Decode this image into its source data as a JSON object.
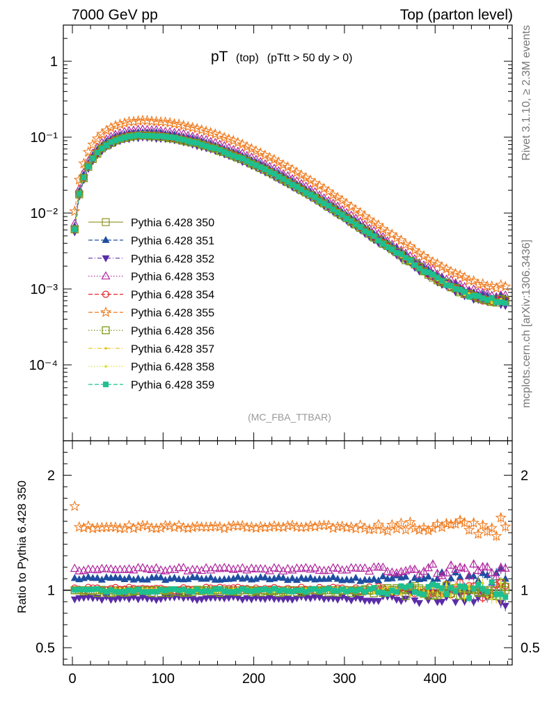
{
  "header": {
    "left": "7000 GeV pp",
    "right": "Top (parton level)"
  },
  "side_text": {
    "top": "Rivet 3.1.10, ≥ 2.3M events",
    "bottom": "mcplots.cern.ch [arXiv:1306.3436]"
  },
  "plot_title": {
    "main": "pT",
    "sub1": "(top)",
    "sub2": "(pTtt > 50 dy > 0)"
  },
  "analysis_tag": "(MC_FBA_TTBAR)",
  "chart_data": [
    {
      "type": "scatter",
      "yscale": "log",
      "xlim": [
        -10,
        485
      ],
      "ylim": [
        1e-05,
        3
      ],
      "y_ticks": [
        {
          "value": 1,
          "label": "1"
        },
        {
          "value": 0.1,
          "label": "10⁻¹"
        },
        {
          "value": 0.01,
          "label": "10⁻²"
        },
        {
          "value": 0.001,
          "label": "10⁻³"
        },
        {
          "value": 0.0001,
          "label": "10⁻⁴"
        }
      ],
      "legend_position": "left-middle",
      "reference": {
        "x": [
          2.5,
          7.5,
          12.5,
          17.5,
          22.5,
          27.5,
          32.5,
          37.5,
          42.5,
          47.5,
          52.5,
          57.5,
          62.5,
          67.5,
          72.5,
          77.5,
          82.5,
          87.5,
          92.5,
          97.5,
          102.5,
          107.5,
          112.5,
          117.5,
          122.5,
          127.5,
          132.5,
          137.5,
          142.5,
          147.5,
          152.5,
          157.5,
          162.5,
          167.5,
          172.5,
          177.5,
          182.5,
          187.5,
          192.5,
          197.5,
          202.5,
          207.5,
          212.5,
          217.5,
          222.5,
          227.5,
          232.5,
          237.5,
          242.5,
          247.5,
          252.5,
          257.5,
          262.5,
          267.5,
          272.5,
          277.5,
          282.5,
          287.5,
          292.5,
          297.5,
          302.5,
          307.5,
          312.5,
          317.5,
          322.5,
          327.5,
          332.5,
          337.5,
          342.5,
          347.5,
          352.5,
          357.5,
          362.5,
          367.5,
          372.5,
          377.5,
          382.5,
          387.5,
          392.5,
          397.5,
          402.5,
          407.5,
          412.5,
          417.5,
          422.5,
          427.5,
          432.5,
          437.5,
          442.5,
          447.5,
          452.5,
          457.5,
          462.5,
          467.5,
          472.5,
          477.5
        ],
        "y": [
          0.0061,
          0.0177,
          0.0291,
          0.0408,
          0.0519,
          0.0621,
          0.0712,
          0.0791,
          0.0859,
          0.0915,
          0.0961,
          0.0997,
          0.1024,
          0.1043,
          0.1054,
          0.1059,
          0.1058,
          0.1052,
          0.1043,
          0.1029,
          0.1013,
          0.0993,
          0.0971,
          0.0947,
          0.0921,
          0.0893,
          0.0864,
          0.0834,
          0.0803,
          0.0771,
          0.0739,
          0.0706,
          0.0673,
          0.0641,
          0.0608,
          0.0576,
          0.0545,
          0.0514,
          0.0484,
          0.0455,
          0.0427,
          0.0399,
          0.0373,
          0.0348,
          0.0324,
          0.0301,
          0.0279,
          0.0259,
          0.0239,
          0.0221,
          0.0204,
          0.0188,
          0.0173,
          0.0159,
          0.0146,
          0.0134,
          0.0123,
          0.0112,
          0.0103,
          0.00938,
          0.00856,
          0.00781,
          0.00711,
          0.00647,
          0.00589,
          0.00536,
          0.00487,
          0.00443,
          0.00403,
          0.00367,
          0.00334,
          0.00304,
          0.00277,
          0.00252,
          0.0023,
          0.0021,
          0.00192,
          0.00176,
          0.00161,
          0.00148,
          0.00136,
          0.00126,
          0.00116,
          0.00108,
          0.00101,
          0.000948,
          0.000893,
          0.000846,
          0.000805,
          0.000771,
          0.000744,
          0.000722,
          0.000707,
          0.000697,
          0.000692,
          0.000692
        ]
      },
      "series": [
        {
          "name": "Pythia 6.428 350",
          "color": "#999933",
          "marker": "open-square",
          "line": "solid",
          "scale": 1.0
        },
        {
          "name": "Pythia 6.428 351",
          "color": "#1f4ea1",
          "marker": "filled-triangle-up",
          "line": "dashed",
          "scale": 1.1
        },
        {
          "name": "Pythia 6.428 352",
          "color": "#5b2ca8",
          "marker": "filled-triangle-down",
          "line": "dash-dot",
          "scale": 0.93
        },
        {
          "name": "Pythia 6.428 353",
          "color": "#b0259e",
          "marker": "open-triangle-up",
          "line": "dotted",
          "scale": 1.18
        },
        {
          "name": "Pythia 6.428 354",
          "color": "#e8242b",
          "marker": "open-circle",
          "line": "dashed",
          "scale": 1.01
        },
        {
          "name": "Pythia 6.428 355",
          "color": "#f07b1e",
          "marker": "open-star",
          "line": "dashed",
          "scale": 1.55
        },
        {
          "name": "Pythia 6.428 356",
          "color": "#7a9a17",
          "marker": "open-square",
          "line": "dotted",
          "scale": 0.99
        },
        {
          "name": "Pythia 6.428 357",
          "color": "#e9c418",
          "marker": "small-dot",
          "line": "dash-dot",
          "scale": 1.0
        },
        {
          "name": "Pythia 6.428 358",
          "color": "#d8dd2a",
          "marker": "small-dot",
          "line": "dotted",
          "scale": 1.0
        },
        {
          "name": "Pythia 6.428 359",
          "color": "#1fbf8f",
          "marker": "filled-square",
          "line": "dashed",
          "scale": 1.0
        }
      ]
    },
    {
      "type": "scatter",
      "ylabel": "Ratio to Pythia 6.428 350",
      "xlim": [
        -10,
        485
      ],
      "ylim": [
        0.35,
        2.3
      ],
      "y_ticks": [
        {
          "value": 2,
          "label": "2"
        },
        {
          "value": 1,
          "label": "1"
        },
        {
          "value": 0.5,
          "label": "0.5"
        }
      ],
      "x_ticks": [
        {
          "value": 0,
          "label": "0"
        },
        {
          "value": 100,
          "label": "100"
        },
        {
          "value": 200,
          "label": "200"
        },
        {
          "value": 300,
          "label": "300"
        },
        {
          "value": 400,
          "label": "400"
        }
      ],
      "reference_line": 1.0
    }
  ]
}
